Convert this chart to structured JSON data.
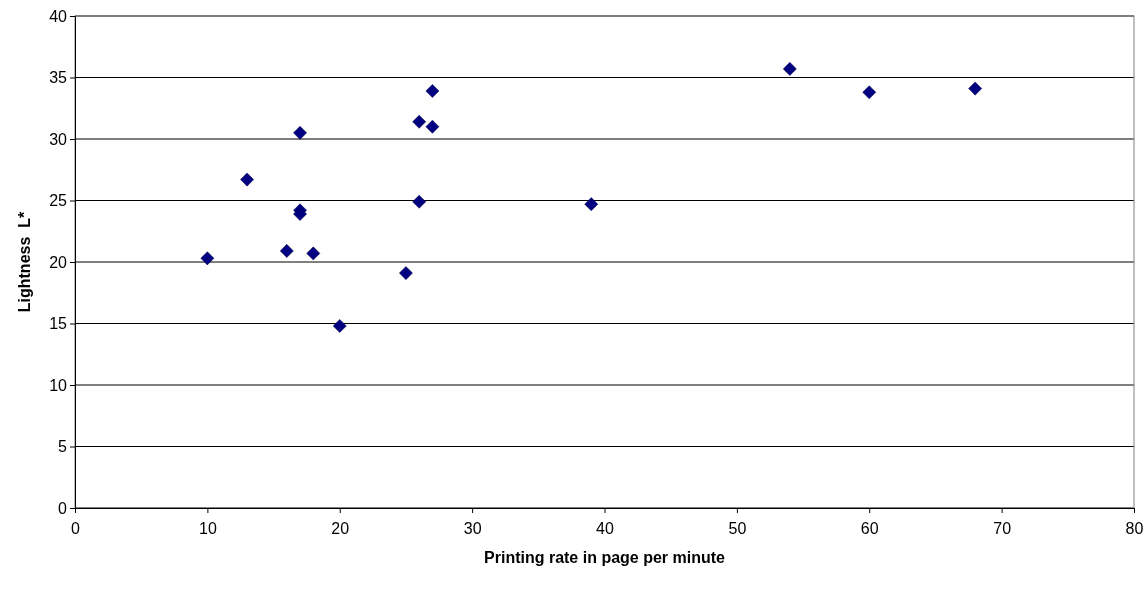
{
  "chart_data": {
    "type": "scatter",
    "xlabel": "Printing rate in page per minute",
    "ylabel": "Lightness  L*",
    "x": [
      10,
      13,
      16,
      17,
      17,
      17,
      18,
      20,
      25,
      26,
      26,
      27,
      27,
      39,
      54,
      60,
      68
    ],
    "values": [
      20.3,
      26.7,
      20.9,
      30.5,
      24.2,
      23.9,
      20.7,
      14.8,
      19.1,
      31.4,
      24.9,
      33.9,
      31.0,
      24.7,
      35.7,
      33.8,
      34.1
    ],
    "color": "#000080",
    "marker": "diamond",
    "xlim": [
      0,
      80
    ],
    "xticks": [
      0,
      10,
      20,
      30,
      40,
      50,
      60,
      70,
      80
    ],
    "ylim": [
      0,
      40
    ],
    "yticks": [
      0,
      5,
      10,
      15,
      20,
      25,
      30,
      35,
      40
    ],
    "grid": "y"
  }
}
